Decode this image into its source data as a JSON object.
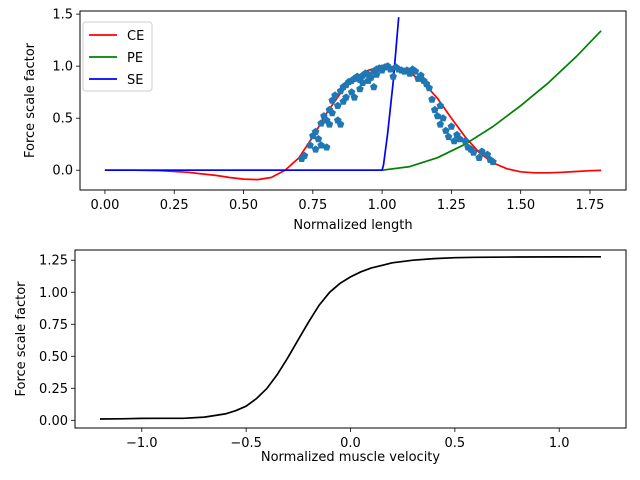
{
  "chart_data": [
    {
      "type": "line",
      "title": "",
      "xlabel": "Normalized length",
      "ylabel": "Force scale factor",
      "xlim": [
        -0.09,
        1.88
      ],
      "ylim": [
        -0.19,
        1.53
      ],
      "xticks": [
        0.0,
        0.25,
        0.5,
        0.75,
        1.0,
        1.25,
        1.5,
        1.75
      ],
      "xtick_labels": [
        "0.00",
        "0.25",
        "0.50",
        "0.75",
        "1.00",
        "1.25",
        "1.50",
        "1.75"
      ],
      "yticks": [
        0.0,
        0.5,
        1.0,
        1.5
      ],
      "ytick_labels": [
        "0.0",
        "0.5",
        "1.0",
        "1.5"
      ],
      "legend": {
        "position": "top-left"
      },
      "series": [
        {
          "name": "CE",
          "color": "#ff0000",
          "x": [
            0.0,
            0.1,
            0.2,
            0.3,
            0.35,
            0.4,
            0.45,
            0.5,
            0.55,
            0.6,
            0.65,
            0.7,
            0.75,
            0.8,
            0.85,
            0.9,
            0.95,
            1.0,
            1.05,
            1.1,
            1.15,
            1.2,
            1.25,
            1.3,
            1.35,
            1.4,
            1.45,
            1.5,
            1.55,
            1.6,
            1.65,
            1.7,
            1.75,
            1.79
          ],
          "values": [
            0.0,
            0.0,
            -0.005,
            -0.02,
            -0.035,
            -0.05,
            -0.07,
            -0.085,
            -0.09,
            -0.07,
            0.0,
            0.12,
            0.32,
            0.55,
            0.74,
            0.88,
            0.96,
            1.0,
            0.99,
            0.94,
            0.84,
            0.69,
            0.5,
            0.32,
            0.17,
            0.07,
            0.015,
            -0.015,
            -0.025,
            -0.025,
            -0.02,
            -0.012,
            -0.005,
            -0.002
          ]
        },
        {
          "name": "PE",
          "color": "#008000",
          "x": [
            0.0,
            0.5,
            1.0,
            1.1,
            1.2,
            1.3,
            1.4,
            1.5,
            1.6,
            1.7,
            1.79
          ],
          "values": [
            0.0,
            0.0,
            0.0,
            0.035,
            0.12,
            0.25,
            0.42,
            0.62,
            0.84,
            1.09,
            1.34
          ]
        },
        {
          "name": "SE",
          "color": "#0000ff",
          "x": [
            0.0,
            0.5,
            1.0,
            1.005,
            1.02,
            1.04,
            1.06
          ],
          "values": [
            0.0,
            0.0,
            0.0,
            0.05,
            0.35,
            0.85,
            1.47
          ]
        }
      ],
      "scatter": {
        "name": "",
        "color": "#1f77b4",
        "x": [
          0.71,
          0.72,
          0.74,
          0.75,
          0.76,
          0.76,
          0.77,
          0.78,
          0.78,
          0.79,
          0.8,
          0.8,
          0.81,
          0.81,
          0.82,
          0.82,
          0.83,
          0.84,
          0.84,
          0.85,
          0.85,
          0.86,
          0.86,
          0.87,
          0.87,
          0.88,
          0.89,
          0.89,
          0.9,
          0.9,
          0.91,
          0.92,
          0.92,
          0.93,
          0.93,
          0.94,
          0.95,
          0.95,
          0.96,
          0.97,
          0.97,
          0.98,
          0.98,
          0.99,
          1.0,
          1.0,
          1.01,
          1.02,
          1.03,
          1.04,
          1.05,
          1.06,
          1.07,
          1.08,
          1.09,
          1.1,
          1.11,
          1.12,
          1.13,
          1.14,
          1.15,
          1.16,
          1.17,
          1.18,
          1.19,
          1.2,
          1.21,
          1.21,
          1.22,
          1.23,
          1.24,
          1.25,
          1.26,
          1.27,
          1.28,
          1.3,
          1.31,
          1.32,
          1.33,
          1.35,
          1.36,
          1.38,
          1.39,
          1.4
        ],
        "values": [
          0.11,
          0.14,
          0.24,
          0.33,
          0.2,
          0.37,
          0.3,
          0.45,
          0.24,
          0.52,
          0.22,
          0.48,
          0.58,
          0.44,
          0.67,
          0.55,
          0.72,
          0.62,
          0.48,
          0.76,
          0.44,
          0.8,
          0.66,
          0.82,
          0.7,
          0.85,
          0.86,
          0.75,
          0.88,
          0.7,
          0.9,
          0.87,
          0.78,
          0.91,
          0.84,
          0.93,
          0.92,
          0.86,
          0.89,
          0.95,
          0.8,
          0.97,
          0.92,
          0.98,
          0.98,
          0.96,
          0.99,
          1.0,
          0.97,
          0.9,
          0.99,
          0.97,
          0.96,
          0.95,
          0.96,
          0.93,
          0.97,
          0.95,
          0.88,
          0.91,
          0.86,
          0.83,
          0.79,
          0.68,
          0.58,
          0.52,
          0.62,
          0.44,
          0.5,
          0.38,
          0.32,
          0.42,
          0.28,
          0.34,
          0.3,
          0.28,
          0.22,
          0.2,
          0.17,
          0.12,
          0.18,
          0.15,
          0.1,
          0.08
        ]
      }
    },
    {
      "type": "line",
      "title": "",
      "xlabel": "Normalized muscle velocity",
      "ylabel": "Force scale factor",
      "xlim": [
        -1.32,
        1.32
      ],
      "ylim": [
        -0.06,
        1.33
      ],
      "xticks": [
        -1.0,
        -0.5,
        0.0,
        0.5,
        1.0
      ],
      "xtick_labels": [
        "−1.0",
        "−0.5",
        "0.0",
        "0.5",
        "1.0"
      ],
      "yticks": [
        0.0,
        0.25,
        0.5,
        0.75,
        1.0,
        1.25
      ],
      "ytick_labels": [
        "0.00",
        "0.25",
        "0.50",
        "0.75",
        "1.00",
        "1.25"
      ],
      "series": [
        {
          "name": "",
          "color": "#000000",
          "x": [
            -1.2,
            -1.1,
            -1.0,
            -0.9,
            -0.8,
            -0.7,
            -0.6,
            -0.55,
            -0.5,
            -0.45,
            -0.4,
            -0.35,
            -0.3,
            -0.25,
            -0.2,
            -0.15,
            -0.1,
            -0.05,
            0.0,
            0.05,
            0.1,
            0.15,
            0.2,
            0.3,
            0.4,
            0.5,
            0.6,
            0.8,
            1.0,
            1.2
          ],
          "values": [
            0.01,
            0.012,
            0.015,
            0.016,
            0.016,
            0.025,
            0.05,
            0.075,
            0.11,
            0.17,
            0.25,
            0.36,
            0.49,
            0.63,
            0.77,
            0.9,
            1.0,
            1.07,
            1.12,
            1.16,
            1.19,
            1.21,
            1.23,
            1.25,
            1.263,
            1.27,
            1.273,
            1.275,
            1.276,
            1.277
          ]
        }
      ]
    }
  ]
}
